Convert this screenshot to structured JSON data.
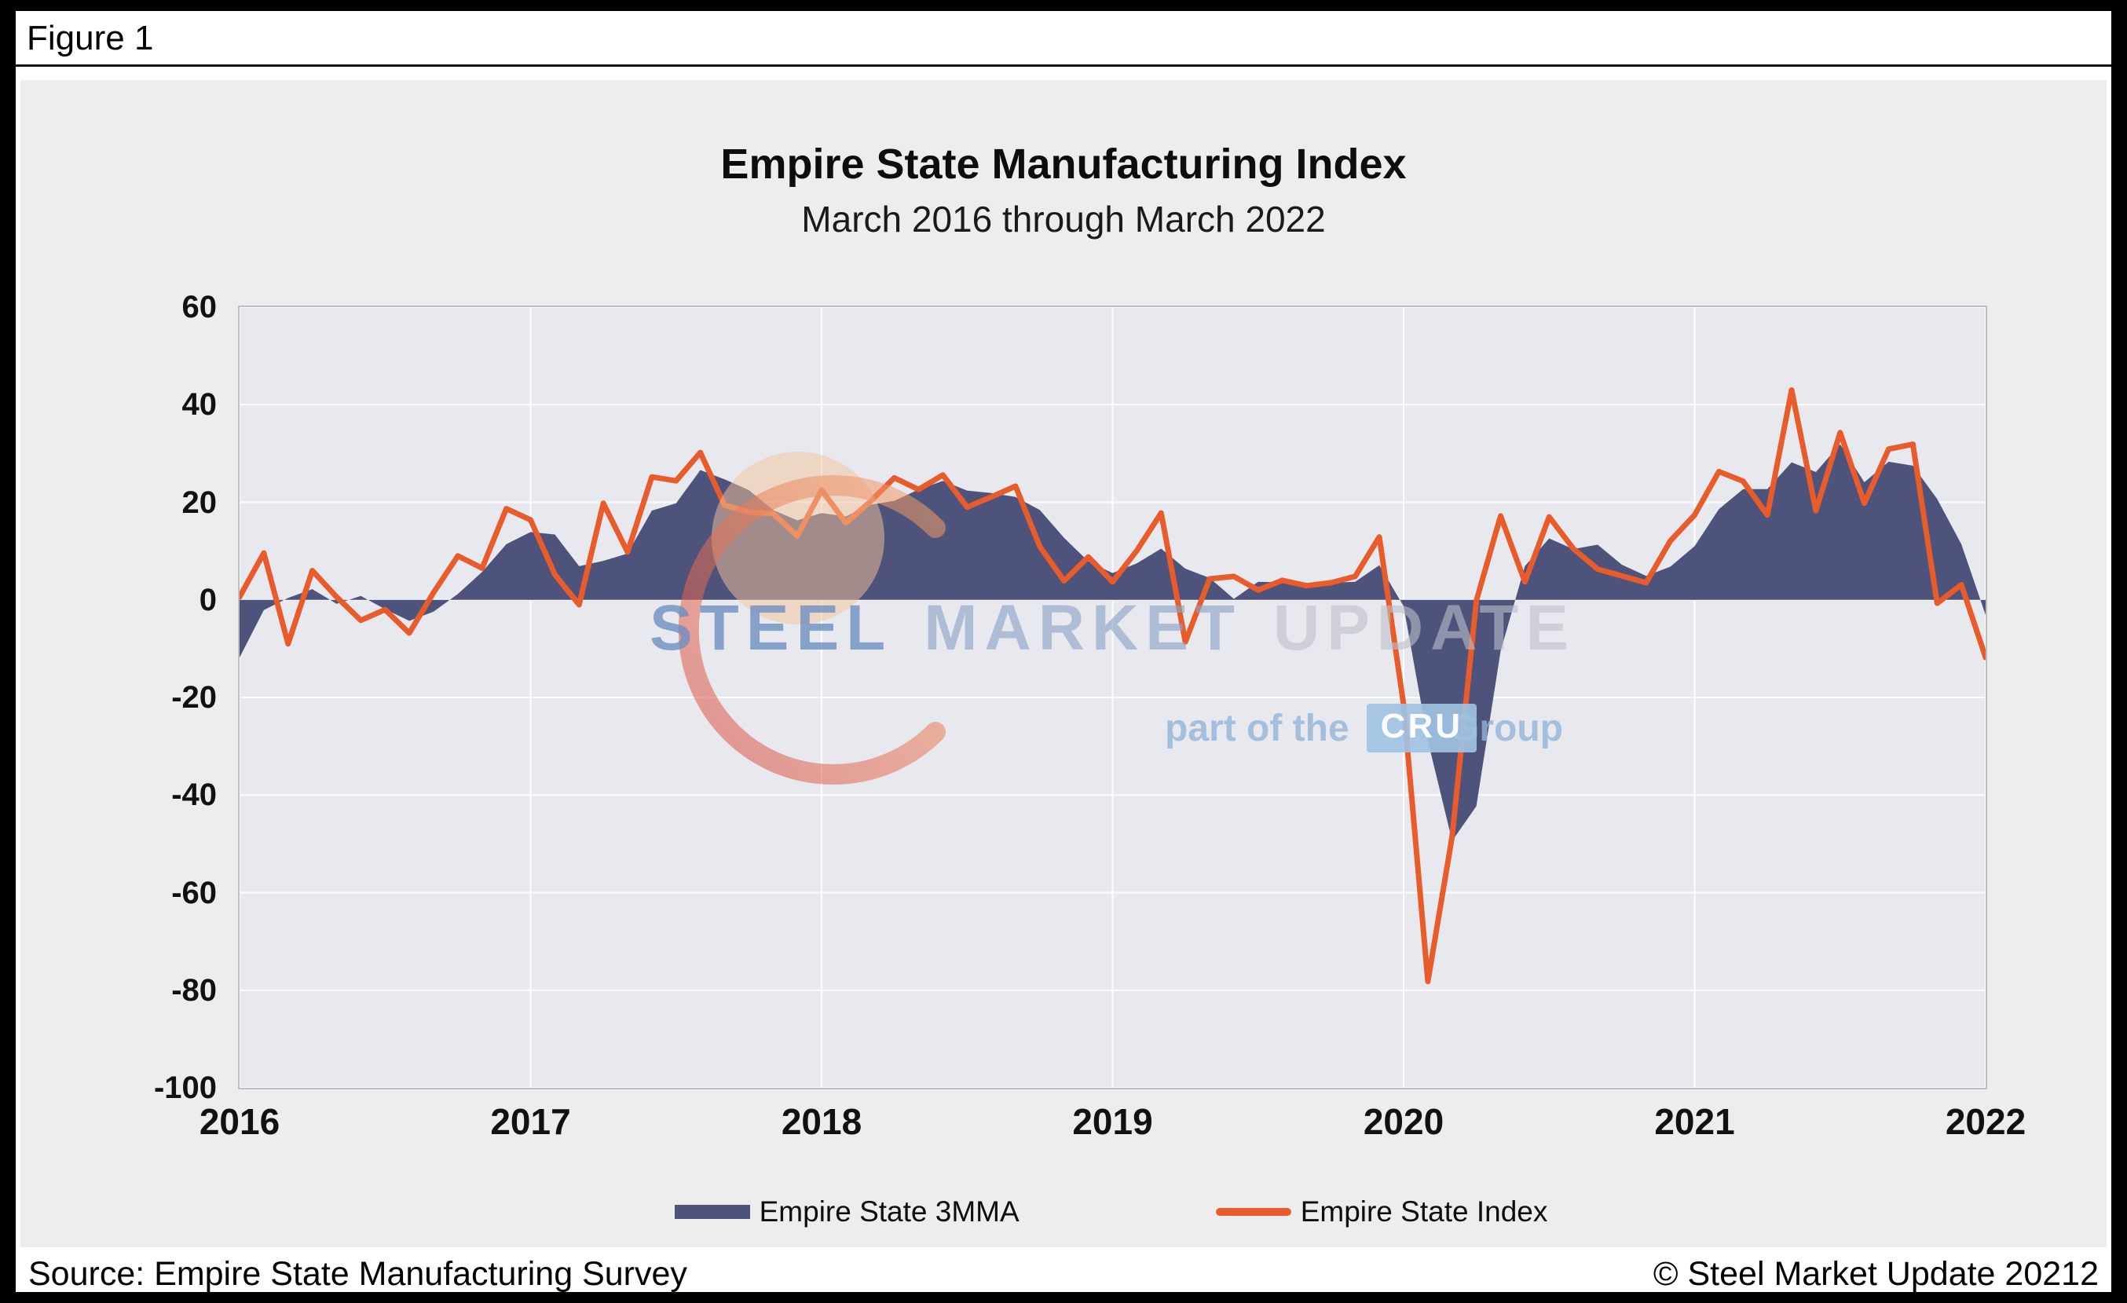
{
  "figure_label": "Figure 1",
  "footer": {
    "source": "Source: Empire State Manufacturing Survey",
    "copyright": "© Steel Market Update 20212"
  },
  "watermark": {
    "word1": "STEEL",
    "word2": "MARKET",
    "word3": "UPDATE",
    "part_of_the": "part of the",
    "cru": "CRU",
    "group": "Group",
    "steel_color": "#6D8FC0",
    "market_color": "#8AA2C6",
    "update_color": "#BABFCA",
    "cru_box_color": "#A0C2E2",
    "swoosh_red": "#D94A42",
    "swoosh_orange": "#F2A36B"
  },
  "chart_data": {
    "type": "area",
    "title": "Empire State Manufacturing Index",
    "subtitle": "March 2016 through March 2022",
    "xlabel": "",
    "ylabel": "",
    "ylim": [
      -100,
      60
    ],
    "grid": true,
    "legend_position": "bottom",
    "plot_bg": "#E8E9EF",
    "x_months": [
      "2016-03",
      "2016-04",
      "2016-05",
      "2016-06",
      "2016-07",
      "2016-08",
      "2016-09",
      "2016-10",
      "2016-11",
      "2016-12",
      "2017-01",
      "2017-02",
      "2017-03",
      "2017-04",
      "2017-05",
      "2017-06",
      "2017-07",
      "2017-08",
      "2017-09",
      "2017-10",
      "2017-11",
      "2017-12",
      "2018-01",
      "2018-02",
      "2018-03",
      "2018-04",
      "2018-05",
      "2018-06",
      "2018-07",
      "2018-08",
      "2018-09",
      "2018-10",
      "2018-11",
      "2018-12",
      "2019-01",
      "2019-02",
      "2019-03",
      "2019-04",
      "2019-05",
      "2019-06",
      "2019-07",
      "2019-08",
      "2019-09",
      "2019-10",
      "2019-11",
      "2019-12",
      "2020-01",
      "2020-02",
      "2020-03",
      "2020-04",
      "2020-05",
      "2020-06",
      "2020-07",
      "2020-08",
      "2020-09",
      "2020-10",
      "2020-11",
      "2020-12",
      "2021-01",
      "2021-02",
      "2021-03",
      "2021-04",
      "2021-05",
      "2021-06",
      "2021-07",
      "2021-08",
      "2021-09",
      "2021-10",
      "2021-11",
      "2021-12",
      "2022-01",
      "2022-02",
      "2022-03"
    ],
    "x_tick_labels": [
      "2016",
      "2017",
      "2018",
      "2019",
      "2020",
      "2021",
      "2022"
    ],
    "x_tick_month_indices": [
      0,
      12,
      24,
      36,
      48,
      60,
      72
    ],
    "y_ticks": [
      60,
      40,
      20,
      0,
      -20,
      -40,
      -60,
      -80,
      -100
    ],
    "series": [
      {
        "name": "Empire State 3MMA",
        "type": "area",
        "color": "#4E537B",
        "values": [
          -11.8,
          -2.1,
          0.4,
          2.2,
          -0.8,
          0.8,
          -1.9,
          -4.3,
          -2.4,
          1.2,
          5.7,
          11.4,
          13.9,
          13.4,
          6.9,
          8.0,
          9.5,
          18.3,
          19.8,
          26.6,
          24.7,
          22.5,
          18.4,
          16.3,
          17.8,
          17.1,
          19.5,
          20.3,
          22.6,
          24.4,
          22.4,
          21.9,
          21.1,
          18.4,
          12.7,
          7.9,
          5.5,
          7.5,
          10.5,
          6.4,
          4.5,
          0.2,
          3.7,
          3.6,
          3.0,
          3.5,
          3.7,
          7.1,
          -1.3,
          -28.9,
          -49.4,
          -42.3,
          -10.5,
          6.9,
          12.6,
          10.4,
          11.3,
          7.2,
          4.9,
          6.8,
          11.0,
          18.6,
          22.7,
          22.7,
          28.2,
          26.2,
          31.9,
          24.1,
          28.3,
          27.5,
          20.7,
          11.4,
          -3.1
        ]
      },
      {
        "name": "Empire State Index",
        "type": "line",
        "color": "#E85C2B",
        "values": [
          0.6,
          9.6,
          -9.0,
          6.0,
          0.6,
          -4.2,
          -2.0,
          -6.8,
          1.5,
          9.0,
          6.5,
          18.7,
          16.4,
          5.2,
          -1.0,
          19.8,
          9.8,
          25.2,
          24.4,
          30.2,
          19.4,
          18.0,
          17.7,
          13.1,
          22.5,
          15.8,
          20.1,
          25.0,
          22.6,
          25.6,
          19.0,
          21.1,
          23.3,
          10.9,
          3.9,
          8.8,
          3.7,
          10.1,
          17.8,
          -8.6,
          4.3,
          4.8,
          2.0,
          4.0,
          2.9,
          3.5,
          4.8,
          12.9,
          -21.5,
          -78.2,
          -48.5,
          -0.2,
          17.2,
          3.7,
          17.0,
          10.5,
          6.3,
          4.9,
          3.5,
          12.1,
          17.4,
          26.3,
          24.3,
          17.4,
          43.0,
          18.3,
          34.3,
          19.8,
          30.9,
          31.9,
          -0.7,
          3.1,
          -11.8
        ]
      }
    ]
  }
}
